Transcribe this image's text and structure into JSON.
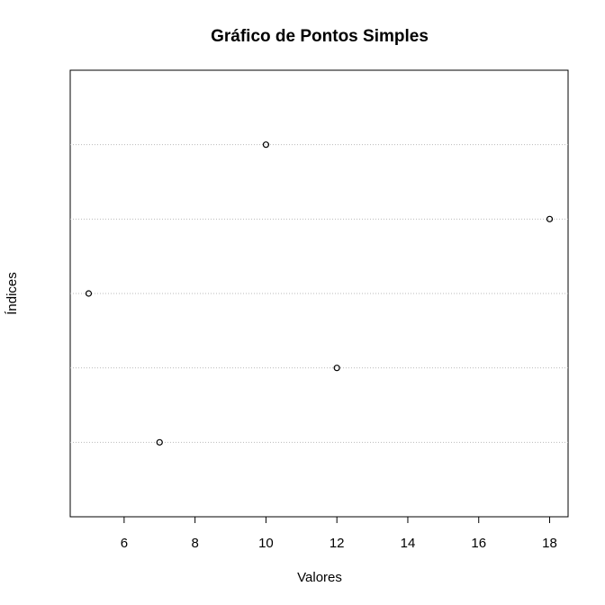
{
  "chart_data": {
    "type": "dot",
    "title": "Gráfico de Pontos Simples",
    "xlabel": "Valores",
    "ylabel": "Índices",
    "categories": [
      null,
      null,
      null,
      null,
      null
    ],
    "values": [
      7,
      12,
      5,
      18,
      10
    ],
    "xlim": [
      4.48,
      18.52
    ],
    "xticks": [
      6,
      8,
      10,
      12,
      14,
      16,
      18
    ],
    "grid": true,
    "color": "#000000"
  }
}
